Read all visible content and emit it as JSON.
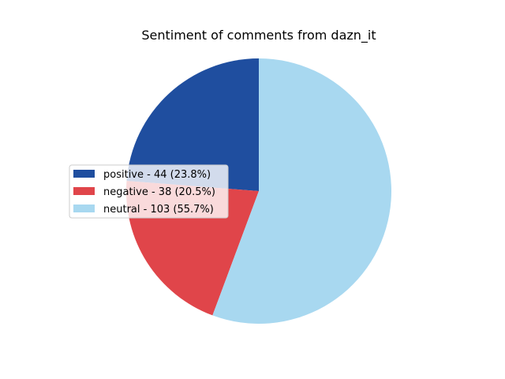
{
  "chart_data": {
    "type": "pie",
    "title": "Sentiment of comments from dazn_it",
    "slices": [
      {
        "label": "positive - 44 (23.8%)",
        "value": 44,
        "color": "#1f4e9f"
      },
      {
        "label": "negative - 38 (20.5%)",
        "value": 38,
        "color": "#e0454a"
      },
      {
        "label": "neutral - 103 (55.7%)",
        "value": 103,
        "color": "#a8d8f0"
      }
    ],
    "start_angle_deg": 90,
    "direction": "counterclockwise",
    "legend_position": "center-left"
  }
}
